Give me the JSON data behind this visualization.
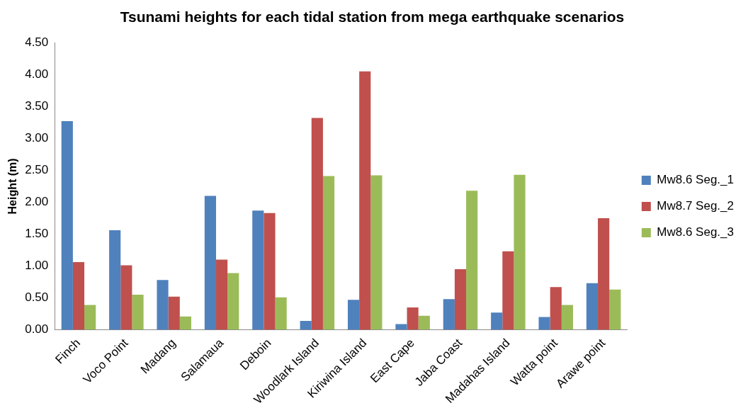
{
  "chart_data": {
    "type": "bar",
    "title": "Tsunami heights for each tidal station from mega earthquake scenarios",
    "ylabel": "Height (m)",
    "categories": [
      "Finch",
      "Voco Point",
      "Madang",
      "Salamaua",
      "Deboin",
      "Woodlark Island",
      "Kiriwina Island",
      "East Cape",
      "Jaba Coast",
      "Madahas Island",
      "Watta point",
      "Arawe point"
    ],
    "series": [
      {
        "name": "Mw8.6 Seg._1",
        "color": "#4f81bd",
        "values": [
          3.27,
          1.56,
          0.78,
          2.1,
          1.87,
          0.14,
          0.47,
          0.09,
          0.48,
          0.27,
          0.2,
          0.73
        ]
      },
      {
        "name": "Mw8.7 Seg._2",
        "color": "#c0504d",
        "values": [
          1.06,
          1.01,
          0.52,
          1.1,
          1.83,
          3.32,
          4.05,
          0.35,
          0.95,
          1.23,
          0.67,
          1.75
        ]
      },
      {
        "name": "Mw8.6 Seg._3",
        "color": "#9bbb59",
        "values": [
          0.39,
          0.55,
          0.21,
          0.89,
          0.51,
          2.41,
          2.42,
          0.22,
          2.18,
          2.43,
          0.39,
          0.63
        ]
      }
    ],
    "ylim": [
      0,
      4.5
    ],
    "yticks": [
      {
        "value": 0,
        "label": "0.00"
      },
      {
        "value": 0.5,
        "label": "0.50"
      },
      {
        "value": 1,
        "label": "1.00"
      },
      {
        "value": 1.5,
        "label": "1.50"
      },
      {
        "value": 2,
        "label": "2.00"
      },
      {
        "value": 2.5,
        "label": "2.50"
      },
      {
        "value": 3,
        "label": "3.00"
      },
      {
        "value": 3.5,
        "label": "3.50"
      },
      {
        "value": 4,
        "label": "4.00"
      },
      {
        "value": 4.5,
        "label": "4.50"
      }
    ],
    "grid": false,
    "legend": "right"
  }
}
